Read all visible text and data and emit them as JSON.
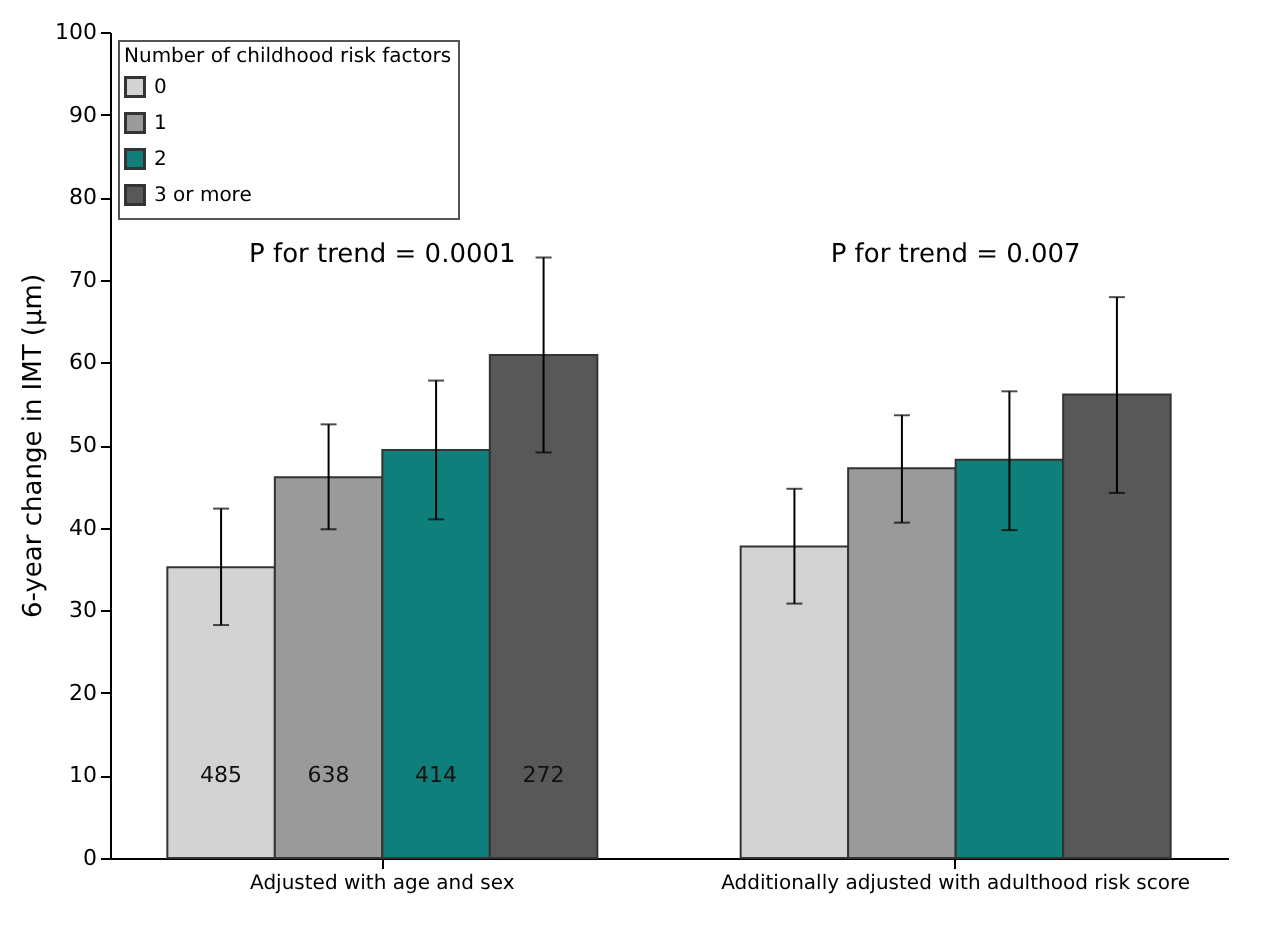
{
  "chart_data": {
    "type": "bar",
    "ylabel": "6-year change in IMT (μm)",
    "legend_title": "Number of childhood risk factors",
    "categories": [
      "Adjusted with age and sex",
      "Additionally adjusted with adulthood risk score"
    ],
    "series": [
      {
        "name": "0",
        "color": "#d3d3d3",
        "values": [
          35.2,
          37.7
        ],
        "errors": [
          [
            28.2,
            42.3
          ],
          [
            30.8,
            44.7
          ]
        ]
      },
      {
        "name": "1",
        "color": "#9a9a9a",
        "values": [
          46.1,
          47.2
        ],
        "errors": [
          [
            39.8,
            52.5
          ],
          [
            40.6,
            53.6
          ]
        ]
      },
      {
        "name": "2",
        "color": "#0f7f7b",
        "values": [
          49.4,
          48.2
        ],
        "errors": [
          [
            41.0,
            57.8
          ],
          [
            39.7,
            56.5
          ]
        ]
      },
      {
        "name": "3 or more",
        "color": "#585858",
        "values": [
          60.9,
          56.1
        ],
        "errors": [
          [
            49.1,
            72.7
          ],
          [
            44.2,
            67.9
          ]
        ]
      }
    ],
    "annotations": [
      "P for trend = 0.0001",
      "P for trend = 0.007",
      "485",
      "638",
      "414",
      "272"
    ],
    "ylim": [
      0,
      100
    ],
    "yticks": [
      0,
      10,
      20,
      30,
      40,
      50,
      60,
      70,
      80,
      90,
      100
    ],
    "grid": false,
    "legend": "top left"
  }
}
